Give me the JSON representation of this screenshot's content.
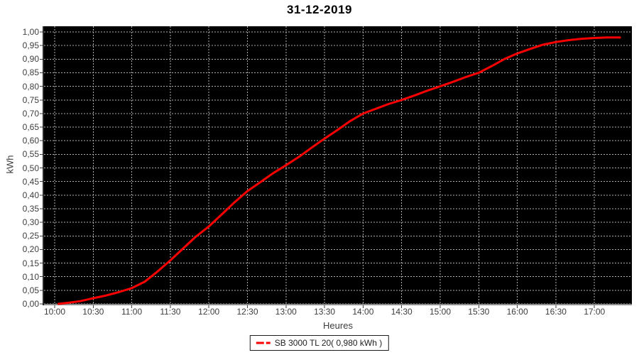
{
  "title": "31-12-2019",
  "legend": {
    "label": "SB 3000 TL 20( 0,980 kWh )"
  },
  "chart_data": {
    "type": "line",
    "title": "31-12-2019",
    "xlabel": "Heures",
    "ylabel": "kWh",
    "xlim": [
      9.862,
      17.486
    ],
    "ylim": [
      0,
      1.021
    ],
    "grid": true,
    "grid_style": "dashed",
    "legend_position": "bottom-center",
    "plot_background": "#000000",
    "grid_color": "#b0b0b0",
    "axis_text_color": "#3d3d3d",
    "x_ticks": {
      "values": [
        10,
        10.5,
        11,
        11.5,
        12,
        12.5,
        13,
        13.5,
        14,
        14.5,
        15,
        15.5,
        16,
        16.5,
        17
      ],
      "labels": [
        "10:00",
        "10:30",
        "11:00",
        "11:30",
        "12:00",
        "12:30",
        "13:00",
        "13:30",
        "14:00",
        "14:30",
        "15:00",
        "15:30",
        "16:00",
        "16:30",
        "17:00"
      ]
    },
    "y_ticks": {
      "values": [
        0,
        0.05,
        0.1,
        0.15,
        0.2,
        0.25,
        0.3,
        0.35,
        0.4,
        0.45,
        0.5,
        0.55,
        0.6,
        0.65,
        0.7,
        0.75,
        0.8,
        0.85,
        0.9,
        0.95,
        1.0
      ],
      "labels": [
        "0,00",
        "0,05",
        "0,10",
        "0,15",
        "0,20",
        "0,25",
        "0,30",
        "0,35",
        "0,40",
        "0,45",
        "0,50",
        "0,55",
        "0,60",
        "0,65",
        "0,70",
        "0,75",
        "0,80",
        "0,85",
        "0,90",
        "0,95",
        "1,00"
      ]
    },
    "series": [
      {
        "name": "SB 3000 TL 20( 0,980 kWh )",
        "color": "#fb0000",
        "total_label": "0,980 kWh",
        "x": [
          10.05,
          10.17,
          10.33,
          10.5,
          10.67,
          10.83,
          11.0,
          11.17,
          11.33,
          11.5,
          11.67,
          11.83,
          12.0,
          12.17,
          12.33,
          12.5,
          12.67,
          12.83,
          13.0,
          13.17,
          13.33,
          13.5,
          13.67,
          13.83,
          14.0,
          14.17,
          14.33,
          14.5,
          14.67,
          14.83,
          15.0,
          15.17,
          15.33,
          15.5,
          15.67,
          15.83,
          16.0,
          16.17,
          16.33,
          16.5,
          16.67,
          16.83,
          17.0,
          17.17,
          17.33
        ],
        "y": [
          0.0,
          0.004,
          0.01,
          0.021,
          0.031,
          0.043,
          0.058,
          0.082,
          0.118,
          0.16,
          0.205,
          0.247,
          0.285,
          0.33,
          0.373,
          0.415,
          0.448,
          0.48,
          0.51,
          0.541,
          0.574,
          0.608,
          0.64,
          0.672,
          0.7,
          0.718,
          0.735,
          0.75,
          0.767,
          0.784,
          0.8,
          0.817,
          0.834,
          0.85,
          0.875,
          0.9,
          0.921,
          0.938,
          0.953,
          0.963,
          0.97,
          0.975,
          0.978,
          0.98,
          0.98
        ]
      }
    ]
  }
}
